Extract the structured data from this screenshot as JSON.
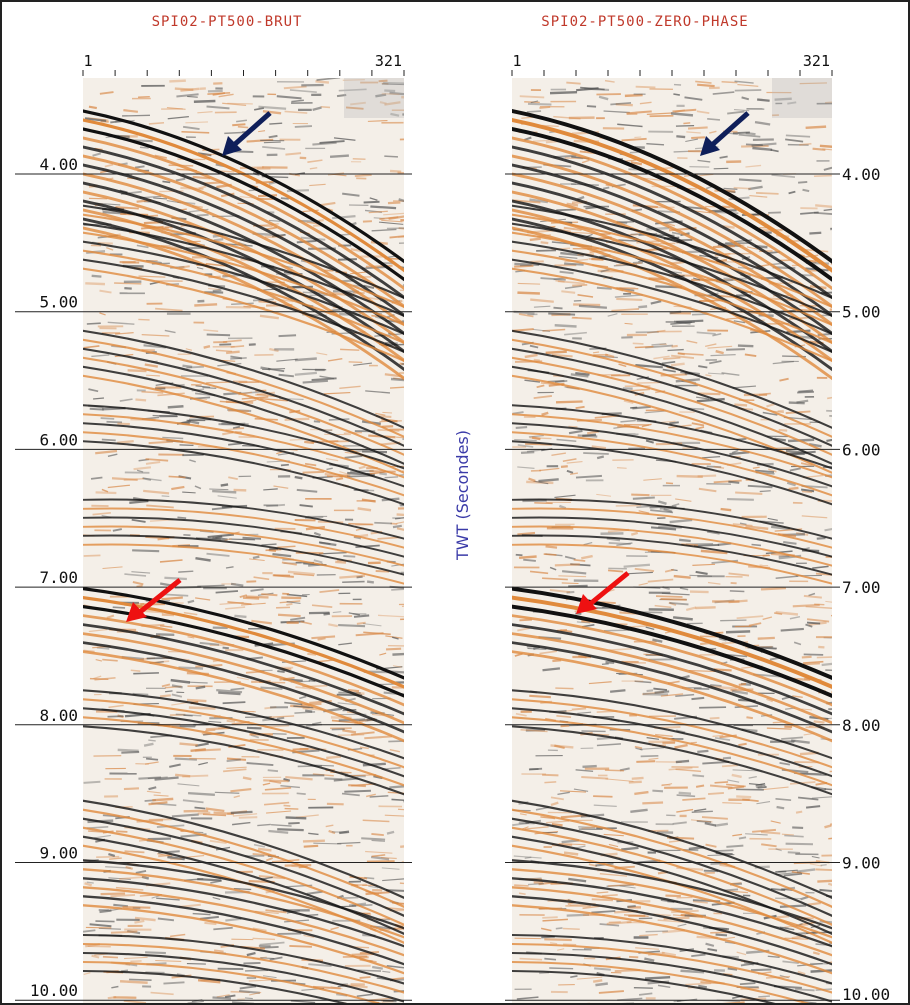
{
  "panels": [
    {
      "title": "SPI02-PT500-BRUT",
      "trace_start": "1",
      "trace_end": "321"
    },
    {
      "title": "SPI02-PT500-ZERO-PHASE",
      "trace_start": "1",
      "trace_end": "321"
    }
  ],
  "time_axis": {
    "label": "TWT (Secondes)",
    "ticks": [
      "4.00",
      "5.00",
      "6.00",
      "7.00",
      "8.00",
      "9.00",
      "10.00"
    ]
  }
}
